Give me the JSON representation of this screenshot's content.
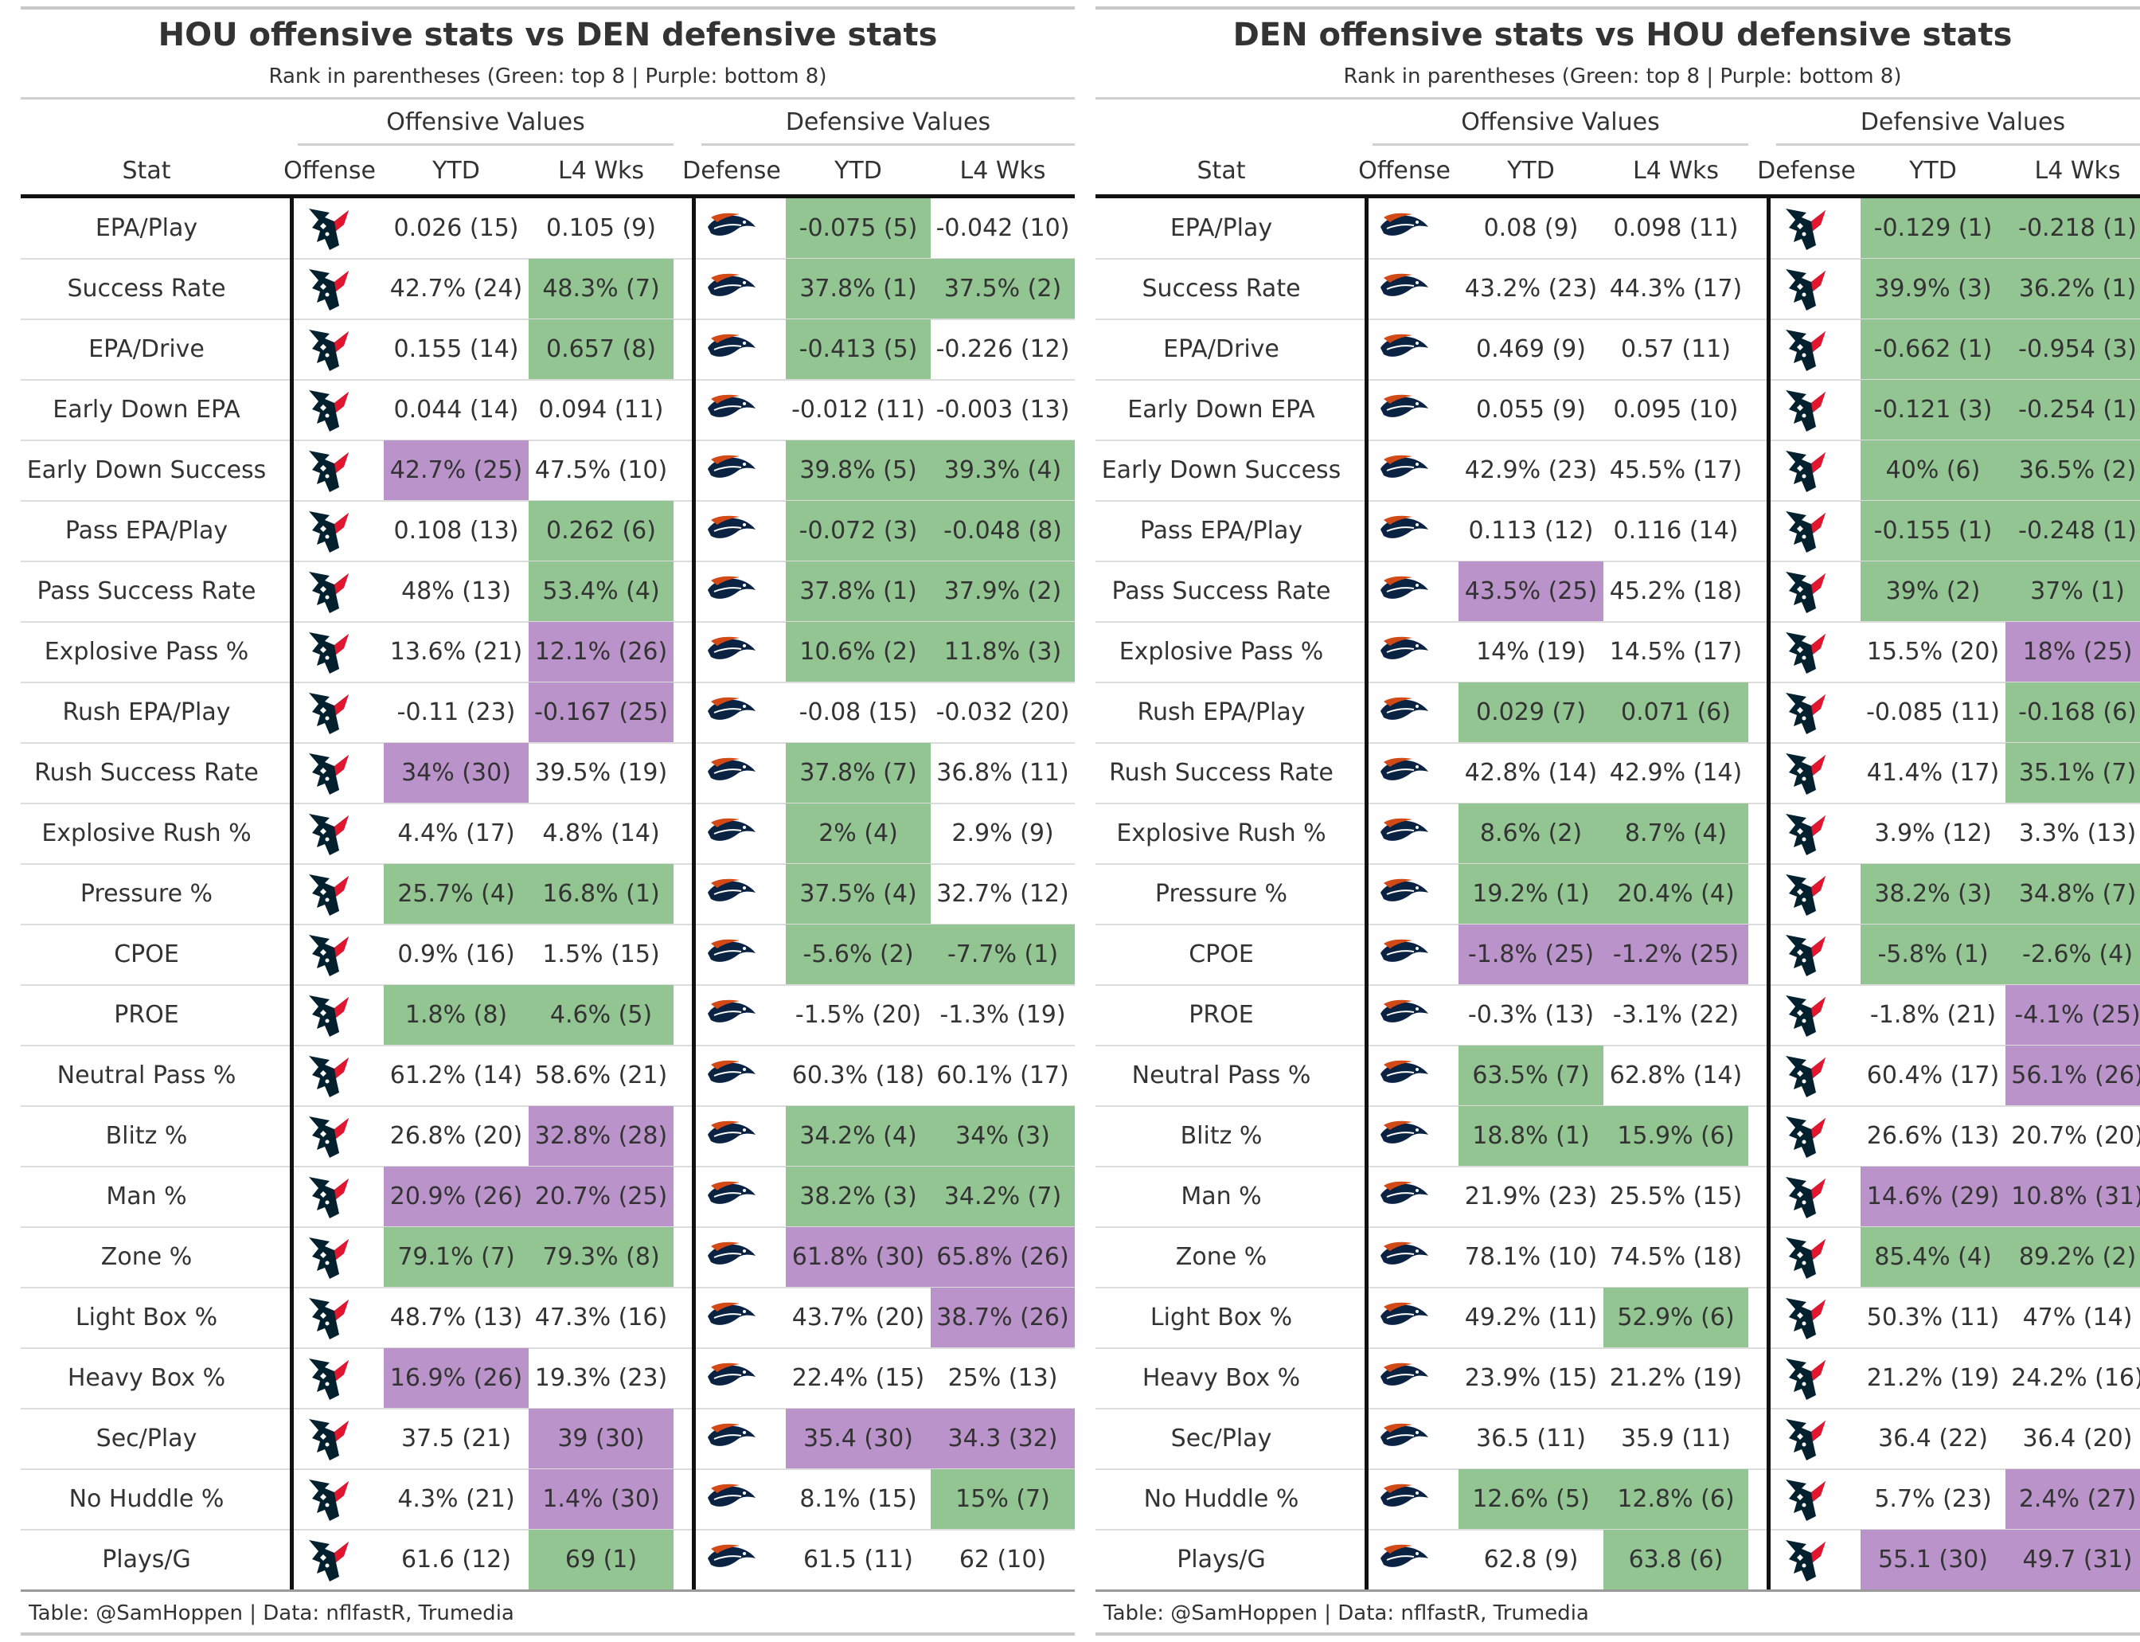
{
  "colors": {
    "green": "#93c592",
    "purple": "#bb93cb",
    "text": "#333333",
    "hou_navy": "#03202f",
    "hou_red": "#e2162e",
    "den_orange": "#d34a17",
    "den_navy": "#0a2343"
  },
  "icons": {
    "hou": "houston-texans-logo-icon",
    "den": "denver-broncos-logo-icon"
  },
  "panels": [
    {
      "title": "HOU offensive stats vs DEN defensive stats",
      "subtitle": "Rank in parentheses (Green: top 8 | Purple: bottom 8)",
      "offense_team": "HOU",
      "defense_team": "DEN",
      "spanners": {
        "offense": "Offensive Values",
        "defense": "Defensive Values"
      },
      "columns": [
        "Stat",
        "Offense",
        "YTD",
        "L4 Wks",
        "Defense",
        "YTD",
        "L4 Wks"
      ],
      "footer": "Table: @SamHoppen | Data: nflfastR, Trumedia",
      "rows": [
        {
          "stat": "EPA/Play",
          "off_ytd": "0.026 (15)",
          "off_ytd_hl": "",
          "off_l4": "0.105 (9)",
          "off_l4_hl": "",
          "def_ytd": "-0.075 (5)",
          "def_ytd_hl": "green",
          "def_l4": "-0.042 (10)",
          "def_l4_hl": ""
        },
        {
          "stat": "Success Rate",
          "off_ytd": "42.7% (24)",
          "off_ytd_hl": "",
          "off_l4": "48.3% (7)",
          "off_l4_hl": "green",
          "def_ytd": "37.8% (1)",
          "def_ytd_hl": "green",
          "def_l4": "37.5% (2)",
          "def_l4_hl": "green"
        },
        {
          "stat": "EPA/Drive",
          "off_ytd": "0.155 (14)",
          "off_ytd_hl": "",
          "off_l4": "0.657 (8)",
          "off_l4_hl": "green",
          "def_ytd": "-0.413 (5)",
          "def_ytd_hl": "green",
          "def_l4": "-0.226 (12)",
          "def_l4_hl": ""
        },
        {
          "stat": "Early Down EPA",
          "off_ytd": "0.044 (14)",
          "off_ytd_hl": "",
          "off_l4": "0.094 (11)",
          "off_l4_hl": "",
          "def_ytd": "-0.012 (11)",
          "def_ytd_hl": "",
          "def_l4": "-0.003 (13)",
          "def_l4_hl": ""
        },
        {
          "stat": "Early Down Success",
          "off_ytd": "42.7% (25)",
          "off_ytd_hl": "purple",
          "off_l4": "47.5% (10)",
          "off_l4_hl": "",
          "def_ytd": "39.8% (5)",
          "def_ytd_hl": "green",
          "def_l4": "39.3% (4)",
          "def_l4_hl": "green"
        },
        {
          "stat": "Pass EPA/Play",
          "off_ytd": "0.108 (13)",
          "off_ytd_hl": "",
          "off_l4": "0.262 (6)",
          "off_l4_hl": "green",
          "def_ytd": "-0.072 (3)",
          "def_ytd_hl": "green",
          "def_l4": "-0.048 (8)",
          "def_l4_hl": "green"
        },
        {
          "stat": "Pass Success Rate",
          "off_ytd": "48% (13)",
          "off_ytd_hl": "",
          "off_l4": "53.4% (4)",
          "off_l4_hl": "green",
          "def_ytd": "37.8% (1)",
          "def_ytd_hl": "green",
          "def_l4": "37.9% (2)",
          "def_l4_hl": "green"
        },
        {
          "stat": "Explosive Pass %",
          "off_ytd": "13.6% (21)",
          "off_ytd_hl": "",
          "off_l4": "12.1% (26)",
          "off_l4_hl": "purple",
          "def_ytd": "10.6% (2)",
          "def_ytd_hl": "green",
          "def_l4": "11.8% (3)",
          "def_l4_hl": "green"
        },
        {
          "stat": "Rush EPA/Play",
          "off_ytd": "-0.11 (23)",
          "off_ytd_hl": "",
          "off_l4": "-0.167 (25)",
          "off_l4_hl": "purple",
          "def_ytd": "-0.08 (15)",
          "def_ytd_hl": "",
          "def_l4": "-0.032 (20)",
          "def_l4_hl": ""
        },
        {
          "stat": "Rush Success Rate",
          "off_ytd": "34% (30)",
          "off_ytd_hl": "purple",
          "off_l4": "39.5% (19)",
          "off_l4_hl": "",
          "def_ytd": "37.8% (7)",
          "def_ytd_hl": "green",
          "def_l4": "36.8% (11)",
          "def_l4_hl": ""
        },
        {
          "stat": "Explosive Rush %",
          "off_ytd": "4.4% (17)",
          "off_ytd_hl": "",
          "off_l4": "4.8% (14)",
          "off_l4_hl": "",
          "def_ytd": "2% (4)",
          "def_ytd_hl": "green",
          "def_l4": "2.9% (9)",
          "def_l4_hl": ""
        },
        {
          "stat": "Pressure %",
          "off_ytd": "25.7% (4)",
          "off_ytd_hl": "green",
          "off_l4": "16.8% (1)",
          "off_l4_hl": "green",
          "def_ytd": "37.5% (4)",
          "def_ytd_hl": "green",
          "def_l4": "32.7% (12)",
          "def_l4_hl": ""
        },
        {
          "stat": "CPOE",
          "off_ytd": "0.9% (16)",
          "off_ytd_hl": "",
          "off_l4": "1.5% (15)",
          "off_l4_hl": "",
          "def_ytd": "-5.6% (2)",
          "def_ytd_hl": "green",
          "def_l4": "-7.7% (1)",
          "def_l4_hl": "green"
        },
        {
          "stat": "PROE",
          "off_ytd": "1.8% (8)",
          "off_ytd_hl": "green",
          "off_l4": "4.6% (5)",
          "off_l4_hl": "green",
          "def_ytd": "-1.5% (20)",
          "def_ytd_hl": "",
          "def_l4": "-1.3% (19)",
          "def_l4_hl": ""
        },
        {
          "stat": "Neutral Pass %",
          "off_ytd": "61.2% (14)",
          "off_ytd_hl": "",
          "off_l4": "58.6% (21)",
          "off_l4_hl": "",
          "def_ytd": "60.3% (18)",
          "def_ytd_hl": "",
          "def_l4": "60.1% (17)",
          "def_l4_hl": ""
        },
        {
          "stat": "Blitz %",
          "off_ytd": "26.8% (20)",
          "off_ytd_hl": "",
          "off_l4": "32.8% (28)",
          "off_l4_hl": "purple",
          "def_ytd": "34.2% (4)",
          "def_ytd_hl": "green",
          "def_l4": "34% (3)",
          "def_l4_hl": "green"
        },
        {
          "stat": "Man %",
          "off_ytd": "20.9% (26)",
          "off_ytd_hl": "purple",
          "off_l4": "20.7% (25)",
          "off_l4_hl": "purple",
          "def_ytd": "38.2% (3)",
          "def_ytd_hl": "green",
          "def_l4": "34.2% (7)",
          "def_l4_hl": "green"
        },
        {
          "stat": "Zone %",
          "off_ytd": "79.1% (7)",
          "off_ytd_hl": "green",
          "off_l4": "79.3% (8)",
          "off_l4_hl": "green",
          "def_ytd": "61.8% (30)",
          "def_ytd_hl": "purple",
          "def_l4": "65.8% (26)",
          "def_l4_hl": "purple"
        },
        {
          "stat": "Light Box %",
          "off_ytd": "48.7% (13)",
          "off_ytd_hl": "",
          "off_l4": "47.3% (16)",
          "off_l4_hl": "",
          "def_ytd": "43.7% (20)",
          "def_ytd_hl": "",
          "def_l4": "38.7% (26)",
          "def_l4_hl": "purple"
        },
        {
          "stat": "Heavy Box %",
          "off_ytd": "16.9% (26)",
          "off_ytd_hl": "purple",
          "off_l4": "19.3% (23)",
          "off_l4_hl": "",
          "def_ytd": "22.4% (15)",
          "def_ytd_hl": "",
          "def_l4": "25% (13)",
          "def_l4_hl": ""
        },
        {
          "stat": "Sec/Play",
          "off_ytd": "37.5 (21)",
          "off_ytd_hl": "",
          "off_l4": "39 (30)",
          "off_l4_hl": "purple",
          "def_ytd": "35.4 (30)",
          "def_ytd_hl": "purple",
          "def_l4": "34.3 (32)",
          "def_l4_hl": "purple"
        },
        {
          "stat": "No Huddle %",
          "off_ytd": "4.3% (21)",
          "off_ytd_hl": "",
          "off_l4": "1.4% (30)",
          "off_l4_hl": "purple",
          "def_ytd": "8.1% (15)",
          "def_ytd_hl": "",
          "def_l4": "15% (7)",
          "def_l4_hl": "green"
        },
        {
          "stat": "Plays/G",
          "off_ytd": "61.6 (12)",
          "off_ytd_hl": "",
          "off_l4": "69 (1)",
          "off_l4_hl": "green",
          "def_ytd": "61.5 (11)",
          "def_ytd_hl": "",
          "def_l4": "62 (10)",
          "def_l4_hl": ""
        }
      ]
    },
    {
      "title": "DEN offensive stats vs HOU defensive stats",
      "subtitle": "Rank in parentheses (Green: top 8 | Purple: bottom 8)",
      "offense_team": "DEN",
      "defense_team": "HOU",
      "spanners": {
        "offense": "Offensive Values",
        "defense": "Defensive Values"
      },
      "columns": [
        "Stat",
        "Offense",
        "YTD",
        "L4 Wks",
        "Defense",
        "YTD",
        "L4 Wks"
      ],
      "footer": "Table: @SamHoppen | Data: nflfastR, Trumedia",
      "rows": [
        {
          "stat": "EPA/Play",
          "off_ytd": "0.08 (9)",
          "off_ytd_hl": "",
          "off_l4": "0.098 (11)",
          "off_l4_hl": "",
          "def_ytd": "-0.129 (1)",
          "def_ytd_hl": "green",
          "def_l4": "-0.218 (1)",
          "def_l4_hl": "green"
        },
        {
          "stat": "Success Rate",
          "off_ytd": "43.2% (23)",
          "off_ytd_hl": "",
          "off_l4": "44.3% (17)",
          "off_l4_hl": "",
          "def_ytd": "39.9% (3)",
          "def_ytd_hl": "green",
          "def_l4": "36.2% (1)",
          "def_l4_hl": "green"
        },
        {
          "stat": "EPA/Drive",
          "off_ytd": "0.469 (9)",
          "off_ytd_hl": "",
          "off_l4": "0.57 (11)",
          "off_l4_hl": "",
          "def_ytd": "-0.662 (1)",
          "def_ytd_hl": "green",
          "def_l4": "-0.954 (3)",
          "def_l4_hl": "green"
        },
        {
          "stat": "Early Down EPA",
          "off_ytd": "0.055 (9)",
          "off_ytd_hl": "",
          "off_l4": "0.095 (10)",
          "off_l4_hl": "",
          "def_ytd": "-0.121 (3)",
          "def_ytd_hl": "green",
          "def_l4": "-0.254 (1)",
          "def_l4_hl": "green"
        },
        {
          "stat": "Early Down Success",
          "off_ytd": "42.9% (23)",
          "off_ytd_hl": "",
          "off_l4": "45.5% (17)",
          "off_l4_hl": "",
          "def_ytd": "40% (6)",
          "def_ytd_hl": "green",
          "def_l4": "36.5% (2)",
          "def_l4_hl": "green"
        },
        {
          "stat": "Pass EPA/Play",
          "off_ytd": "0.113 (12)",
          "off_ytd_hl": "",
          "off_l4": "0.116 (14)",
          "off_l4_hl": "",
          "def_ytd": "-0.155 (1)",
          "def_ytd_hl": "green",
          "def_l4": "-0.248 (1)",
          "def_l4_hl": "green"
        },
        {
          "stat": "Pass Success Rate",
          "off_ytd": "43.5% (25)",
          "off_ytd_hl": "purple",
          "off_l4": "45.2% (18)",
          "off_l4_hl": "",
          "def_ytd": "39% (2)",
          "def_ytd_hl": "green",
          "def_l4": "37% (1)",
          "def_l4_hl": "green"
        },
        {
          "stat": "Explosive Pass %",
          "off_ytd": "14% (19)",
          "off_ytd_hl": "",
          "off_l4": "14.5% (17)",
          "off_l4_hl": "",
          "def_ytd": "15.5% (20)",
          "def_ytd_hl": "",
          "def_l4": "18% (25)",
          "def_l4_hl": "purple"
        },
        {
          "stat": "Rush EPA/Play",
          "off_ytd": "0.029 (7)",
          "off_ytd_hl": "green",
          "off_l4": "0.071 (6)",
          "off_l4_hl": "green",
          "def_ytd": "-0.085 (11)",
          "def_ytd_hl": "",
          "def_l4": "-0.168 (6)",
          "def_l4_hl": "green"
        },
        {
          "stat": "Rush Success Rate",
          "off_ytd": "42.8% (14)",
          "off_ytd_hl": "",
          "off_l4": "42.9% (14)",
          "off_l4_hl": "",
          "def_ytd": "41.4% (17)",
          "def_ytd_hl": "",
          "def_l4": "35.1% (7)",
          "def_l4_hl": "green"
        },
        {
          "stat": "Explosive Rush %",
          "off_ytd": "8.6% (2)",
          "off_ytd_hl": "green",
          "off_l4": "8.7% (4)",
          "off_l4_hl": "green",
          "def_ytd": "3.9% (12)",
          "def_ytd_hl": "",
          "def_l4": "3.3% (13)",
          "def_l4_hl": ""
        },
        {
          "stat": "Pressure %",
          "off_ytd": "19.2% (1)",
          "off_ytd_hl": "green",
          "off_l4": "20.4% (4)",
          "off_l4_hl": "green",
          "def_ytd": "38.2% (3)",
          "def_ytd_hl": "green",
          "def_l4": "34.8% (7)",
          "def_l4_hl": "green"
        },
        {
          "stat": "CPOE",
          "off_ytd": "-1.8% (25)",
          "off_ytd_hl": "purple",
          "off_l4": "-1.2% (25)",
          "off_l4_hl": "purple",
          "def_ytd": "-5.8% (1)",
          "def_ytd_hl": "green",
          "def_l4": "-2.6% (4)",
          "def_l4_hl": "green"
        },
        {
          "stat": "PROE",
          "off_ytd": "-0.3% (13)",
          "off_ytd_hl": "",
          "off_l4": "-3.1% (22)",
          "off_l4_hl": "",
          "def_ytd": "-1.8% (21)",
          "def_ytd_hl": "",
          "def_l4": "-4.1% (25)",
          "def_l4_hl": "purple"
        },
        {
          "stat": "Neutral Pass %",
          "off_ytd": "63.5% (7)",
          "off_ytd_hl": "green",
          "off_l4": "62.8% (14)",
          "off_l4_hl": "",
          "def_ytd": "60.4% (17)",
          "def_ytd_hl": "",
          "def_l4": "56.1% (26)",
          "def_l4_hl": "purple"
        },
        {
          "stat": "Blitz %",
          "off_ytd": "18.8% (1)",
          "off_ytd_hl": "green",
          "off_l4": "15.9% (6)",
          "off_l4_hl": "green",
          "def_ytd": "26.6% (13)",
          "def_ytd_hl": "",
          "def_l4": "20.7% (20)",
          "def_l4_hl": ""
        },
        {
          "stat": "Man %",
          "off_ytd": "21.9% (23)",
          "off_ytd_hl": "",
          "off_l4": "25.5% (15)",
          "off_l4_hl": "",
          "def_ytd": "14.6% (29)",
          "def_ytd_hl": "purple",
          "def_l4": "10.8% (31)",
          "def_l4_hl": "purple"
        },
        {
          "stat": "Zone %",
          "off_ytd": "78.1% (10)",
          "off_ytd_hl": "",
          "off_l4": "74.5% (18)",
          "off_l4_hl": "",
          "def_ytd": "85.4% (4)",
          "def_ytd_hl": "green",
          "def_l4": "89.2% (2)",
          "def_l4_hl": "green"
        },
        {
          "stat": "Light Box %",
          "off_ytd": "49.2% (11)",
          "off_ytd_hl": "",
          "off_l4": "52.9% (6)",
          "off_l4_hl": "green",
          "def_ytd": "50.3% (11)",
          "def_ytd_hl": "",
          "def_l4": "47% (14)",
          "def_l4_hl": ""
        },
        {
          "stat": "Heavy Box %",
          "off_ytd": "23.9% (15)",
          "off_ytd_hl": "",
          "off_l4": "21.2% (19)",
          "off_l4_hl": "",
          "def_ytd": "21.2% (19)",
          "def_ytd_hl": "",
          "def_l4": "24.2% (16)",
          "def_l4_hl": ""
        },
        {
          "stat": "Sec/Play",
          "off_ytd": "36.5 (11)",
          "off_ytd_hl": "",
          "off_l4": "35.9 (11)",
          "off_l4_hl": "",
          "def_ytd": "36.4 (22)",
          "def_ytd_hl": "",
          "def_l4": "36.4 (20)",
          "def_l4_hl": ""
        },
        {
          "stat": "No Huddle %",
          "off_ytd": "12.6% (5)",
          "off_ytd_hl": "green",
          "off_l4": "12.8% (6)",
          "off_l4_hl": "green",
          "def_ytd": "5.7% (23)",
          "def_ytd_hl": "",
          "def_l4": "2.4% (27)",
          "def_l4_hl": "purple"
        },
        {
          "stat": "Plays/G",
          "off_ytd": "62.8 (9)",
          "off_ytd_hl": "",
          "off_l4": "63.8 (6)",
          "off_l4_hl": "green",
          "def_ytd": "55.1 (30)",
          "def_ytd_hl": "purple",
          "def_l4": "49.7 (31)",
          "def_l4_hl": "purple"
        }
      ]
    }
  ]
}
